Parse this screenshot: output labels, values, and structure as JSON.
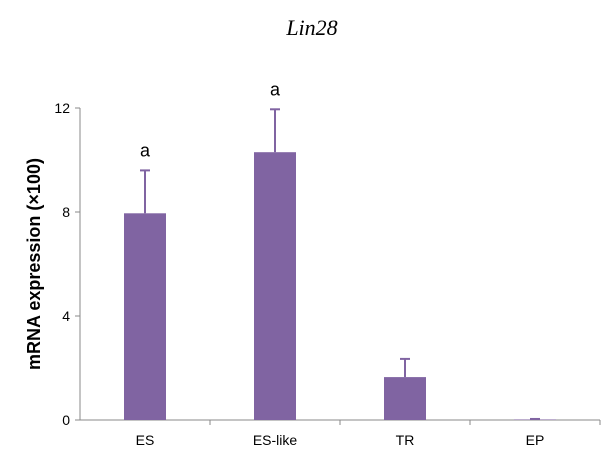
{
  "chart_data": {
    "type": "bar",
    "title": "Lin28",
    "xlabel": "",
    "ylabel": "mRNA expression (×100)",
    "categories": [
      "ES",
      "ES-like",
      "TR",
      "EP"
    ],
    "values": [
      7.95,
      10.3,
      1.65,
      0.02
    ],
    "error_upper": [
      1.65,
      1.65,
      0.7,
      0.02
    ],
    "annotations": [
      "a",
      "a",
      "",
      ""
    ],
    "ylim": [
      0,
      12
    ],
    "yticks": [
      0,
      4,
      8,
      12
    ],
    "bar_color": "#8064a2",
    "grid": false,
    "legend": "none"
  }
}
